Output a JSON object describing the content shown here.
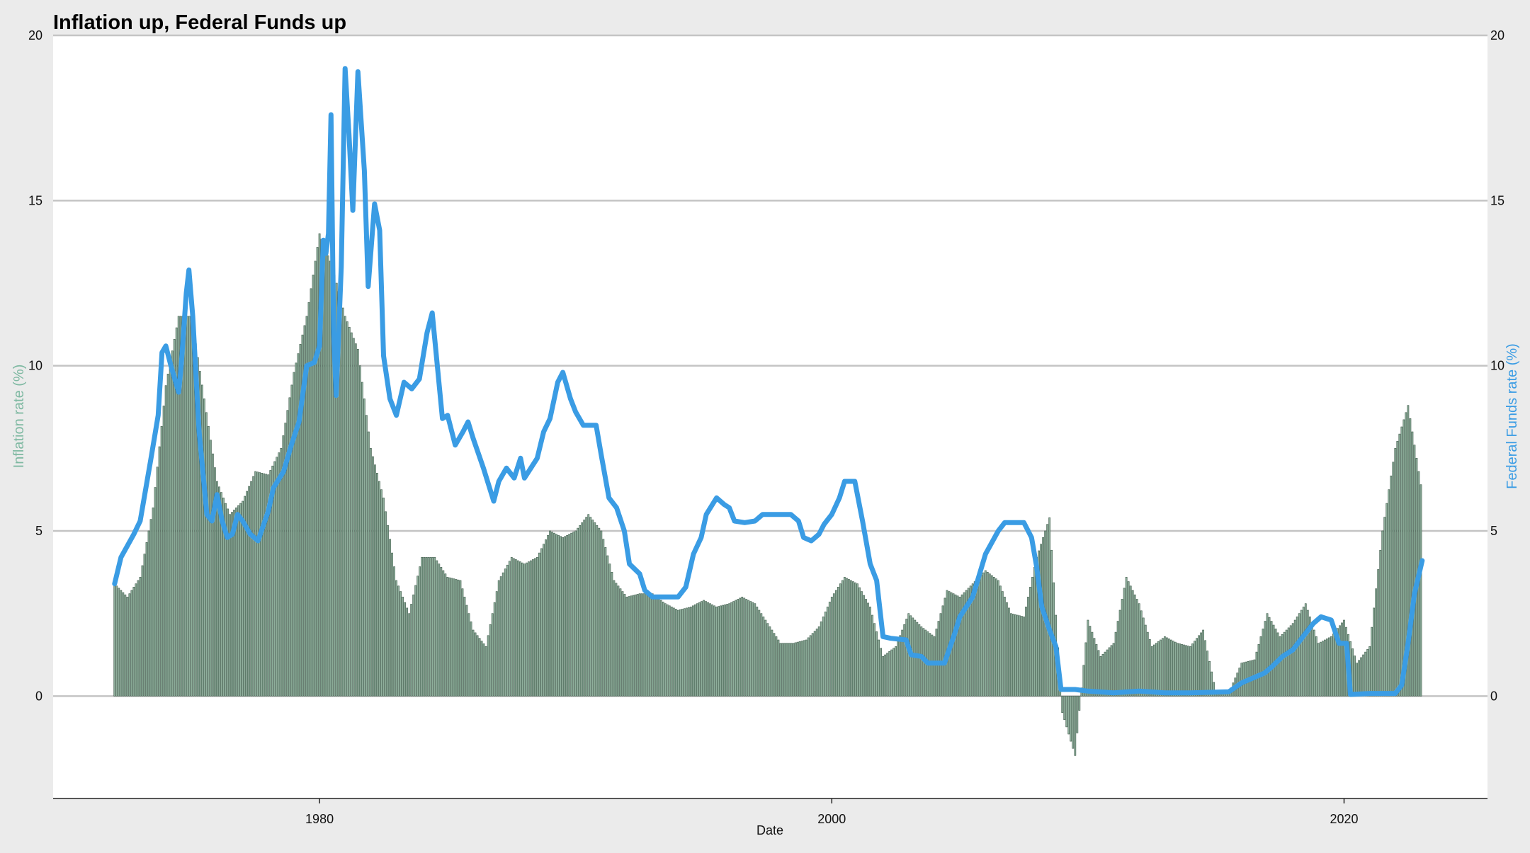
{
  "chart_data": {
    "type": "bar+line",
    "title": "Inflation up, Federal Funds up",
    "xlabel": "Date",
    "ylabel_left": "Inflation rate (%)",
    "ylabel_right": "Federal Funds rate (%)",
    "x_ticks": [
      "1980",
      "2000",
      "2020"
    ],
    "y_ticks": [
      "0",
      "5",
      "10",
      "15",
      "20"
    ],
    "ylim": [
      -3.1,
      20
    ],
    "xlim": [
      1969.6,
      2025.6
    ],
    "grid": true,
    "colors": {
      "bars": "#8faf9c",
      "bar_edge": "#3e5a4a",
      "line": "#3a9ce4",
      "left_axis_label": "#7fb9a2",
      "right_axis_label": "#3a9ce4"
    },
    "series": [
      {
        "name": "Inflation rate (%)",
        "kind": "bar",
        "points": [
          [
            1972.0,
            3.4
          ],
          [
            1972.5,
            3.0
          ],
          [
            1973.0,
            3.6
          ],
          [
            1973.5,
            5.7
          ],
          [
            1974.0,
            9.4
          ],
          [
            1974.5,
            11.5
          ],
          [
            1975.0,
            11.5
          ],
          [
            1975.5,
            9.0
          ],
          [
            1976.0,
            6.5
          ],
          [
            1976.5,
            5.5
          ],
          [
            1977.0,
            5.9
          ],
          [
            1977.5,
            6.8
          ],
          [
            1978.0,
            6.7
          ],
          [
            1978.5,
            7.5
          ],
          [
            1979.0,
            9.8
          ],
          [
            1979.5,
            11.5
          ],
          [
            1980.0,
            14.0
          ],
          [
            1980.5,
            13.0
          ],
          [
            1981.0,
            11.5
          ],
          [
            1981.5,
            10.5
          ],
          [
            1982.0,
            7.5
          ],
          [
            1982.5,
            6.0
          ],
          [
            1983.0,
            3.5
          ],
          [
            1983.5,
            2.5
          ],
          [
            1984.0,
            4.2
          ],
          [
            1984.5,
            4.2
          ],
          [
            1985.0,
            3.6
          ],
          [
            1985.5,
            3.5
          ],
          [
            1986.0,
            2.0
          ],
          [
            1986.5,
            1.5
          ],
          [
            1987.0,
            3.5
          ],
          [
            1987.5,
            4.2
          ],
          [
            1988.0,
            4.0
          ],
          [
            1988.5,
            4.2
          ],
          [
            1989.0,
            5.0
          ],
          [
            1989.5,
            4.8
          ],
          [
            1990.0,
            5.0
          ],
          [
            1990.5,
            5.5
          ],
          [
            1991.0,
            5.0
          ],
          [
            1991.5,
            3.5
          ],
          [
            1992.0,
            3.0
          ],
          [
            1992.5,
            3.1
          ],
          [
            1993.0,
            3.1
          ],
          [
            1993.5,
            2.8
          ],
          [
            1994.0,
            2.6
          ],
          [
            1994.5,
            2.7
          ],
          [
            1995.0,
            2.9
          ],
          [
            1995.5,
            2.7
          ],
          [
            1996.0,
            2.8
          ],
          [
            1996.5,
            3.0
          ],
          [
            1997.0,
            2.8
          ],
          [
            1997.5,
            2.2
          ],
          [
            1998.0,
            1.6
          ],
          [
            1998.5,
            1.6
          ],
          [
            1999.0,
            1.7
          ],
          [
            1999.5,
            2.1
          ],
          [
            2000.0,
            3.0
          ],
          [
            2000.5,
            3.6
          ],
          [
            2001.0,
            3.4
          ],
          [
            2001.5,
            2.7
          ],
          [
            2002.0,
            1.2
          ],
          [
            2002.5,
            1.5
          ],
          [
            2003.0,
            2.5
          ],
          [
            2003.5,
            2.1
          ],
          [
            2004.0,
            1.8
          ],
          [
            2004.5,
            3.2
          ],
          [
            2005.0,
            3.0
          ],
          [
            2005.5,
            3.4
          ],
          [
            2006.0,
            3.8
          ],
          [
            2006.5,
            3.5
          ],
          [
            2007.0,
            2.5
          ],
          [
            2007.5,
            2.4
          ],
          [
            2008.0,
            4.2
          ],
          [
            2008.5,
            5.4
          ],
          [
            2009.0,
            -0.5
          ],
          [
            2009.5,
            -1.8
          ],
          [
            2010.0,
            2.3
          ],
          [
            2010.5,
            1.2
          ],
          [
            2011.0,
            1.6
          ],
          [
            2011.5,
            3.6
          ],
          [
            2012.0,
            2.8
          ],
          [
            2012.5,
            1.5
          ],
          [
            2013.0,
            1.8
          ],
          [
            2013.5,
            1.6
          ],
          [
            2014.0,
            1.5
          ],
          [
            2014.5,
            2.0
          ],
          [
            2015.0,
            0.1
          ],
          [
            2015.5,
            0.1
          ],
          [
            2016.0,
            1.0
          ],
          [
            2016.5,
            1.1
          ],
          [
            2017.0,
            2.5
          ],
          [
            2017.5,
            1.8
          ],
          [
            2018.0,
            2.2
          ],
          [
            2018.5,
            2.8
          ],
          [
            2019.0,
            1.6
          ],
          [
            2019.5,
            1.8
          ],
          [
            2020.0,
            2.3
          ],
          [
            2020.5,
            1.0
          ],
          [
            2021.0,
            1.5
          ],
          [
            2021.5,
            5.0
          ],
          [
            2022.0,
            7.5
          ],
          [
            2022.5,
            8.8
          ],
          [
            2023.0,
            6.4
          ]
        ]
      },
      {
        "name": "Federal Funds rate (%)",
        "kind": "line",
        "points": [
          [
            1972.0,
            3.4
          ],
          [
            1972.25,
            4.2
          ],
          [
            1972.75,
            4.9
          ],
          [
            1973.0,
            5.3
          ],
          [
            1973.4,
            7.1
          ],
          [
            1973.7,
            8.5
          ],
          [
            1973.85,
            10.4
          ],
          [
            1974.0,
            10.6
          ],
          [
            1974.2,
            10.0
          ],
          [
            1974.5,
            9.2
          ],
          [
            1974.6,
            10.0
          ],
          [
            1974.8,
            12.2
          ],
          [
            1974.9,
            12.9
          ],
          [
            1975.05,
            11.5
          ],
          [
            1975.3,
            8.0
          ],
          [
            1975.6,
            5.5
          ],
          [
            1975.8,
            5.3
          ],
          [
            1976.0,
            6.1
          ],
          [
            1976.2,
            5.3
          ],
          [
            1976.4,
            4.8
          ],
          [
            1976.6,
            4.9
          ],
          [
            1976.8,
            5.5
          ],
          [
            1977.0,
            5.3
          ],
          [
            1977.3,
            4.9
          ],
          [
            1977.6,
            4.7
          ],
          [
            1978.0,
            5.6
          ],
          [
            1978.2,
            6.3
          ],
          [
            1978.6,
            6.8
          ],
          [
            1978.9,
            7.6
          ],
          [
            1979.2,
            8.3
          ],
          [
            1979.5,
            10.0
          ],
          [
            1979.8,
            10.1
          ],
          [
            1980.0,
            10.6
          ],
          [
            1980.15,
            13.8
          ],
          [
            1980.25,
            13.4
          ],
          [
            1980.35,
            14.0
          ],
          [
            1980.45,
            17.6
          ],
          [
            1980.55,
            11.0
          ],
          [
            1980.65,
            9.1
          ],
          [
            1980.85,
            13.0
          ],
          [
            1981.0,
            19.0
          ],
          [
            1981.15,
            17.0
          ],
          [
            1981.3,
            14.7
          ],
          [
            1981.5,
            18.9
          ],
          [
            1981.75,
            15.9
          ],
          [
            1981.9,
            12.4
          ],
          [
            1982.15,
            14.9
          ],
          [
            1982.35,
            14.1
          ],
          [
            1982.5,
            10.3
          ],
          [
            1982.75,
            9.0
          ],
          [
            1983.0,
            8.5
          ],
          [
            1983.3,
            9.5
          ],
          [
            1983.6,
            9.3
          ],
          [
            1983.9,
            9.6
          ],
          [
            1984.2,
            11.0
          ],
          [
            1984.4,
            11.6
          ],
          [
            1984.6,
            10.0
          ],
          [
            1984.8,
            8.4
          ],
          [
            1985.0,
            8.5
          ],
          [
            1985.3,
            7.6
          ],
          [
            1985.6,
            8.0
          ],
          [
            1985.8,
            8.3
          ],
          [
            1986.0,
            7.8
          ],
          [
            1986.4,
            6.9
          ],
          [
            1986.8,
            5.9
          ],
          [
            1987.0,
            6.5
          ],
          [
            1987.3,
            6.9
          ],
          [
            1987.6,
            6.6
          ],
          [
            1987.85,
            7.2
          ],
          [
            1988.0,
            6.6
          ],
          [
            1988.5,
            7.2
          ],
          [
            1988.75,
            8.0
          ],
          [
            1989.0,
            8.4
          ],
          [
            1989.3,
            9.5
          ],
          [
            1989.5,
            9.8
          ],
          [
            1989.8,
            9.0
          ],
          [
            1990.0,
            8.6
          ],
          [
            1990.3,
            8.2
          ],
          [
            1990.8,
            8.2
          ],
          [
            1991.0,
            7.3
          ],
          [
            1991.3,
            6.0
          ],
          [
            1991.6,
            5.7
          ],
          [
            1991.9,
            5.0
          ],
          [
            1992.1,
            4.0
          ],
          [
            1992.5,
            3.7
          ],
          [
            1992.7,
            3.2
          ],
          [
            1993.0,
            3.0
          ],
          [
            1993.5,
            3.0
          ],
          [
            1994.0,
            3.0
          ],
          [
            1994.3,
            3.3
          ],
          [
            1994.6,
            4.3
          ],
          [
            1994.9,
            4.8
          ],
          [
            1995.1,
            5.5
          ],
          [
            1995.5,
            6.0
          ],
          [
            1995.8,
            5.8
          ],
          [
            1996.0,
            5.7
          ],
          [
            1996.2,
            5.3
          ],
          [
            1996.6,
            5.25
          ],
          [
            1997.0,
            5.3
          ],
          [
            1997.3,
            5.5
          ],
          [
            1997.8,
            5.5
          ],
          [
            1998.4,
            5.5
          ],
          [
            1998.7,
            5.3
          ],
          [
            1998.9,
            4.8
          ],
          [
            1999.2,
            4.7
          ],
          [
            1999.5,
            4.9
          ],
          [
            1999.7,
            5.2
          ],
          [
            2000.0,
            5.5
          ],
          [
            2000.3,
            6.0
          ],
          [
            2000.5,
            6.5
          ],
          [
            2000.9,
            6.5
          ],
          [
            2001.2,
            5.3
          ],
          [
            2001.5,
            4.0
          ],
          [
            2001.75,
            3.5
          ],
          [
            2002.0,
            1.8
          ],
          [
            2002.3,
            1.75
          ],
          [
            2002.9,
            1.7
          ],
          [
            2003.1,
            1.25
          ],
          [
            2003.5,
            1.2
          ],
          [
            2003.75,
            1.0
          ],
          [
            2004.4,
            1.0
          ],
          [
            2004.8,
            1.9
          ],
          [
            2005.0,
            2.4
          ],
          [
            2005.5,
            3.0
          ],
          [
            2006.0,
            4.3
          ],
          [
            2006.5,
            5.0
          ],
          [
            2006.75,
            5.25
          ],
          [
            2007.5,
            5.25
          ],
          [
            2007.8,
            4.8
          ],
          [
            2008.0,
            3.9
          ],
          [
            2008.2,
            2.7
          ],
          [
            2008.5,
            2.0
          ],
          [
            2008.75,
            1.5
          ],
          [
            2008.95,
            0.2
          ],
          [
            2009.5,
            0.2
          ],
          [
            2010.0,
            0.15
          ],
          [
            2011.0,
            0.1
          ],
          [
            2012.0,
            0.15
          ],
          [
            2013.0,
            0.1
          ],
          [
            2014.0,
            0.1
          ],
          [
            2015.5,
            0.13
          ],
          [
            2016.0,
            0.4
          ],
          [
            2016.9,
            0.7
          ],
          [
            2017.2,
            0.9
          ],
          [
            2017.6,
            1.2
          ],
          [
            2018.0,
            1.4
          ],
          [
            2018.4,
            1.8
          ],
          [
            2018.8,
            2.2
          ],
          [
            2019.1,
            2.4
          ],
          [
            2019.5,
            2.3
          ],
          [
            2019.8,
            1.6
          ],
          [
            2020.1,
            1.6
          ],
          [
            2020.25,
            0.05
          ],
          [
            2021.0,
            0.08
          ],
          [
            2022.0,
            0.08
          ],
          [
            2022.25,
            0.33
          ],
          [
            2022.5,
            1.6
          ],
          [
            2022.75,
            3.1
          ],
          [
            2023.05,
            4.1
          ]
        ]
      }
    ]
  }
}
